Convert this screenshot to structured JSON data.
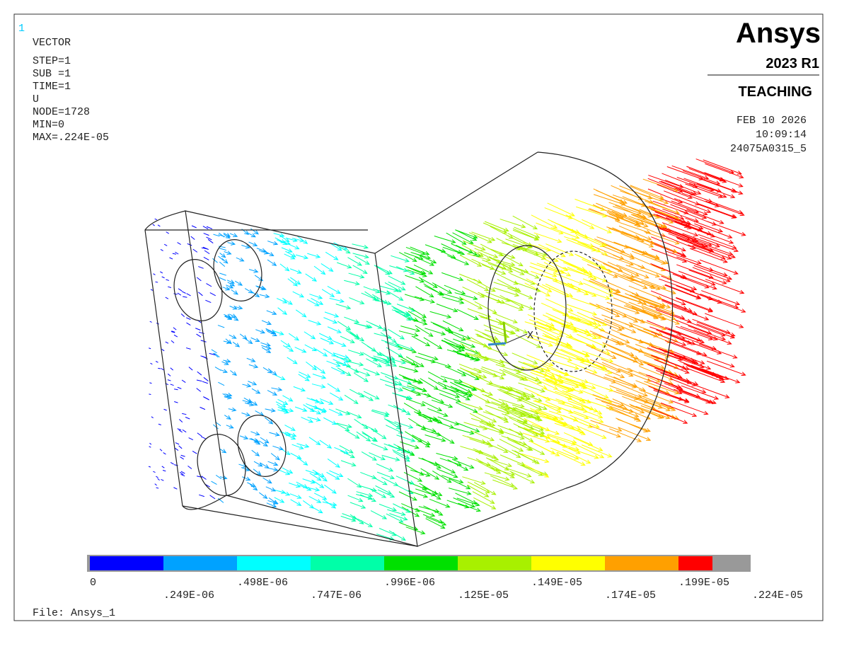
{
  "window_number": "1",
  "info": {
    "lines": [
      "VECTOR",
      "STEP=1",
      "SUB =1",
      "TIME=1",
      "U",
      "NODE=1728",
      "MIN=0",
      "MAX=.224E-05"
    ]
  },
  "logo": {
    "name": "Ansys",
    "version": "2023 R1",
    "edition": "TEACHING"
  },
  "stamp": {
    "date": "FEB 10 2026",
    "time": "10:09:14",
    "job": "24075A0315_5"
  },
  "triad": {
    "x_label": "X"
  },
  "legend": {
    "colors": [
      "#0000ff",
      "#00a2ff",
      "#00ffff",
      "#00ffa8",
      "#00e000",
      "#a8f000",
      "#ffff00",
      "#ffa000",
      "#ff0000"
    ],
    "labels": [
      "0",
      ".249E-06",
      ".498E-06",
      ".747E-06",
      ".996E-06",
      ".125E-05",
      ".149E-05",
      ".174E-05",
      ".199E-05",
      ".224E-05"
    ]
  },
  "file": "File: Ansys_1"
}
